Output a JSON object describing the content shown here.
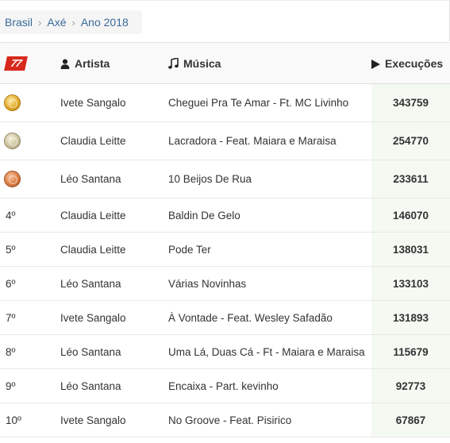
{
  "breadcrumb": [
    "Brasil",
    "Axé",
    "Ano 2018"
  ],
  "table": {
    "headers": {
      "artist": "Artista",
      "music": "Música",
      "plays": "Execuções"
    },
    "logo": "77",
    "rows": [
      {
        "pos": "1º",
        "medal": "gold-medal-icon",
        "artist": "Ivete Sangalo",
        "music": "Cheguei Pra Te Amar - Ft. MC Livinho",
        "plays": "343759"
      },
      {
        "pos": "2º",
        "medal": "silver-medal-icon",
        "artist": "Claudia Leitte",
        "music": "Lacradora - Feat. Maiara e Maraisa",
        "plays": "254770"
      },
      {
        "pos": "3º",
        "medal": "bronze-medal-icon",
        "artist": "Léo Santana",
        "music": "10 Beijos De Rua",
        "plays": "233611"
      },
      {
        "pos": "4º",
        "artist": "Claudia Leitte",
        "music": "Baldin De Gelo",
        "plays": "146070"
      },
      {
        "pos": "5º",
        "artist": "Claudia Leitte",
        "music": "Pode Ter",
        "plays": "138031"
      },
      {
        "pos": "6º",
        "artist": "Léo Santana",
        "music": "Várias Novinhas",
        "plays": "133103"
      },
      {
        "pos": "7º",
        "artist": "Ivete Sangalo",
        "music": "À Vontade - Feat. Wesley Safadão",
        "plays": "131893"
      },
      {
        "pos": "8º",
        "artist": "Léo Santana",
        "music": "Uma Lá, Duas Cá - Ft - Maiara e Maraisa",
        "plays": "115679"
      },
      {
        "pos": "9º",
        "artist": "Léo Santana",
        "music": "Encaixa - Part. kevinho",
        "plays": "92773"
      },
      {
        "pos": "10º",
        "artist": "Ivete Sangalo",
        "music": "No Groove - Feat. Pisirico",
        "plays": "67867"
      }
    ]
  },
  "colors": {
    "link": "#3a6a9a",
    "plays_text": "#3c6b27",
    "plays_bg": "#f4f9f2",
    "logo_red": "#d8271c"
  }
}
